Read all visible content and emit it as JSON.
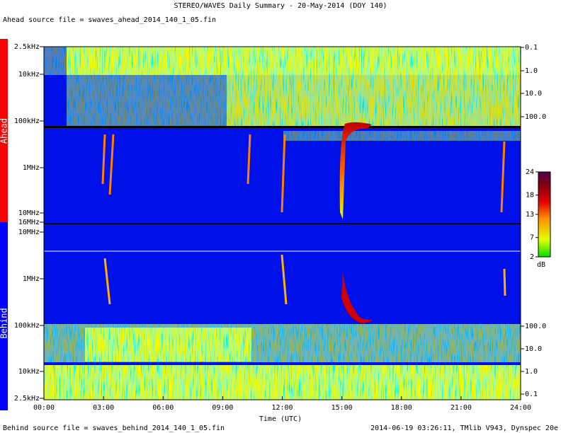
{
  "header": {
    "title": "STEREO/WAVES Daily Summary - 20-May-2014 (DOY 140)",
    "ahead_file": "Ahead source file = swaves_ahead_2014_140_1_05.fin"
  },
  "panels": {
    "ahead": {
      "label": "Ahead",
      "left_ticks": [
        "2.5kHz",
        "10kHz",
        "100kHz",
        "1MHz",
        "10MHz",
        "16MHz"
      ],
      "right_ticks": [
        "0.1",
        "1.0",
        "10.0",
        "100.0"
      ]
    },
    "behind": {
      "label": "Behind",
      "left_ticks": [
        "10MHz",
        "1MHz",
        "100kHz",
        "10kHz",
        "2.5kHz"
      ],
      "right_ticks": [
        "100.0",
        "10.0",
        "1.0",
        "0.1"
      ]
    }
  },
  "time_axis": {
    "ticks": [
      "00:00",
      "03:00",
      "06:00",
      "09:00",
      "12:00",
      "15:00",
      "18:00",
      "21:00",
      "24:00"
    ],
    "label": "Time (UTC)"
  },
  "colorbar": {
    "lim": [
      2,
      24
    ],
    "ticks": [
      2,
      7,
      13,
      18,
      24
    ],
    "unit": "dB"
  },
  "footer": {
    "behind_file": "Behind source file = swaves_behind_2014_140_1_05.fin",
    "credit": "2014-06-19 03:26:11, TMlib V943, Dynspec 20e"
  }
}
